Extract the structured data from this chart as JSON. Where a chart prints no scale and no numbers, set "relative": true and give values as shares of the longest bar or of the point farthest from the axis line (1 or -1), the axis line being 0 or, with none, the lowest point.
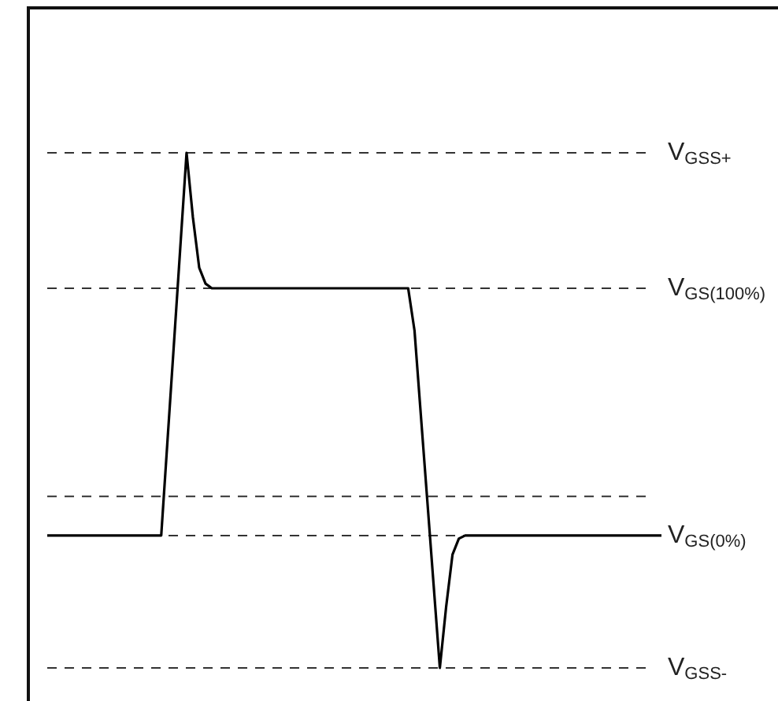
{
  "chart_data": {
    "type": "line",
    "relative": true,
    "legend": false,
    "tick_labels": false,
    "marker": "none",
    "line_style": "solid",
    "categories": [
      null,
      null,
      null,
      null,
      null,
      null,
      null,
      null,
      null,
      null,
      null,
      null,
      null,
      null,
      null,
      null,
      null,
      null,
      null,
      null,
      null,
      null,
      null,
      null,
      null,
      null,
      null,
      null,
      null,
      null,
      null,
      null,
      null,
      null,
      null,
      null,
      null,
      null,
      null,
      null,
      null,
      null,
      null,
      null,
      null,
      null,
      null,
      null,
      null,
      null,
      null,
      null,
      null,
      null,
      null,
      null,
      null,
      null,
      null,
      null,
      null,
      null,
      null,
      null,
      null,
      null,
      null,
      null,
      null,
      null,
      null,
      null,
      null,
      null,
      null,
      null,
      null,
      null,
      null,
      null,
      null,
      null,
      null,
      null,
      null,
      null,
      null,
      null,
      null,
      null,
      null,
      null,
      null,
      null,
      null,
      null,
      null,
      null
    ],
    "series": [
      {
        "color": "#000000",
        "values": [
          0.257,
          0.257,
          0.257,
          0.257,
          0.257,
          0.257,
          0.257,
          0.257,
          0.257,
          0.257,
          0.257,
          0.257,
          0.257,
          0.257,
          0.257,
          0.257,
          0.257,
          0.257,
          0.257,
          0.443,
          0.628,
          0.814,
          1,
          0.875,
          0.777,
          0.746,
          0.737,
          0.737,
          0.737,
          0.737,
          0.737,
          0.737,
          0.737,
          0.737,
          0.737,
          0.737,
          0.737,
          0.737,
          0.737,
          0.737,
          0.737,
          0.737,
          0.737,
          0.737,
          0.737,
          0.737,
          0.737,
          0.737,
          0.737,
          0.737,
          0.737,
          0.737,
          0.737,
          0.737,
          0.737,
          0.737,
          0.737,
          0.737,
          0.655,
          0.491,
          0.328,
          0.164,
          0,
          0.119,
          0.22,
          0.251,
          0.257,
          0.257,
          0.257,
          0.257,
          0.257,
          0.257,
          0.257,
          0.257,
          0.257,
          0.257,
          0.257,
          0.257,
          0.257,
          0.257,
          0.257,
          0.257,
          0.257,
          0.257,
          0.257,
          0.257,
          0.257,
          0.257,
          0.257,
          0.257,
          0.257,
          0.257,
          0.257,
          0.257,
          0.257,
          0.257,
          0.257,
          0.257
        ]
      }
    ],
    "ref_lines": [
      {
        "axis": "y",
        "value": 1,
        "label": "V$_{GSS+}$",
        "color": "#333333",
        "line_style": "dashed"
      },
      {
        "axis": "y",
        "value": 0.737,
        "label": "V$_{GS(100%)}$",
        "color": "#333333",
        "line_style": "dashed"
      },
      {
        "axis": "y",
        "value": 0.333,
        "label": null,
        "color": "#333333",
        "line_style": "dashed"
      },
      {
        "axis": "y",
        "value": 0.257,
        "label": "V$_{GS(0%)}$",
        "color": "#333333",
        "line_style": "dashed"
      },
      {
        "axis": "y",
        "value": 0,
        "label": "V$_{GSS-}$",
        "color": "#333333",
        "line_style": "dashed"
      }
    ]
  }
}
